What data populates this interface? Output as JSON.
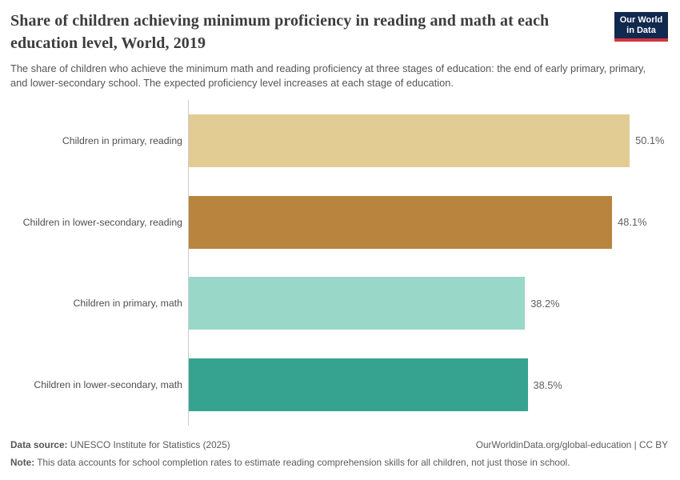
{
  "header": {
    "title": "Share of children achieving minimum proficiency in reading and math at each education level, World, 2019",
    "subtitle": "The share of children who achieve the minimum math and reading proficiency at three stages of education: the end of early primary, primary, and lower-secondary school. The expected proficiency level increases at each stage of education.",
    "logo": {
      "line1": "Our World",
      "line2": "in Data",
      "bg_color": "#12294f",
      "accent_color": "#d1353c"
    }
  },
  "chart_data": {
    "type": "bar",
    "orientation": "horizontal",
    "title": "Share of children achieving minimum proficiency in reading and math at each education level, World, 2019",
    "categories": [
      "Children in primary, reading",
      "Children in lower-secondary, reading",
      "Children in primary, math",
      "Children in lower-secondary, math"
    ],
    "values": [
      50.1,
      48.1,
      38.2,
      38.5
    ],
    "value_labels": [
      "50.1%",
      "48.1%",
      "38.2%",
      "38.5%"
    ],
    "bar_colors": [
      "#e3cc93",
      "#b8843e",
      "#99d8c8",
      "#36a390"
    ],
    "unit": "%",
    "xlim": [
      0,
      54
    ],
    "grid": false,
    "data_labels": true,
    "axis_line_color": "#cccccc"
  },
  "footer": {
    "source_label": "Data source:",
    "source_text": " UNESCO Institute for Statistics (2025)",
    "credit": "OurWorldinData.org/global-education | CC BY",
    "note_label": "Note:",
    "note_text": " This data accounts for school completion rates to estimate reading comprehension skills for all children, not just those in school."
  }
}
